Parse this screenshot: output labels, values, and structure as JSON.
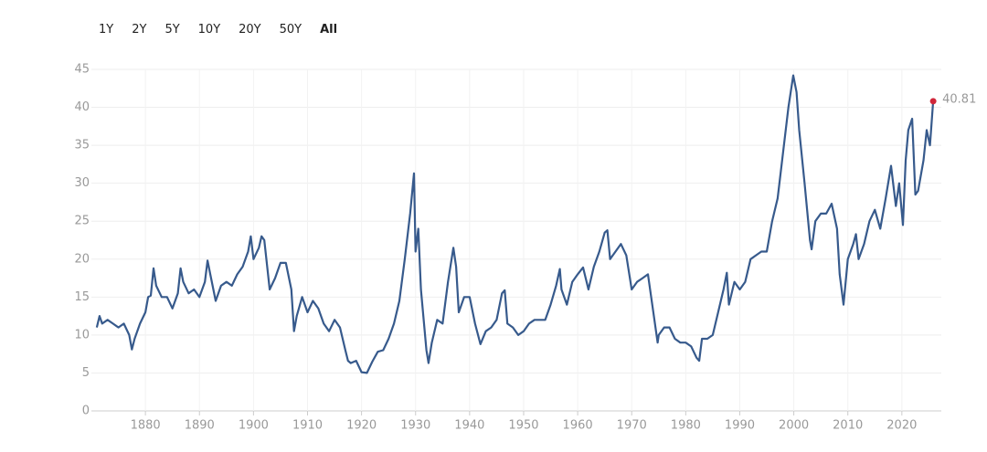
{
  "range_buttons": [
    "1Y",
    "2Y",
    "5Y",
    "10Y",
    "20Y",
    "50Y",
    "All"
  ],
  "selected": "All",
  "chart_data": {
    "type": "line",
    "xlim": [
      1870,
      2027.3
    ],
    "ylim": [
      0,
      45
    ],
    "xticks": [
      1880,
      1890,
      1900,
      1910,
      1920,
      1930,
      1940,
      1950,
      1960,
      1970,
      1980,
      1990,
      2000,
      2010,
      2020
    ],
    "yticks": [
      0,
      5,
      10,
      15,
      20,
      25,
      30,
      35,
      40,
      45
    ],
    "grid": true,
    "x": [
      1871,
      1871.5,
      1872,
      1873,
      1874,
      1875,
      1876,
      1877,
      1877.5,
      1878,
      1879,
      1880,
      1880.5,
      1881,
      1881.5,
      1882,
      1883,
      1884,
      1885,
      1886,
      1886.5,
      1887,
      1888,
      1889,
      1890,
      1891,
      1891.5,
      1892,
      1893,
      1894,
      1895,
      1896,
      1897,
      1898,
      1899,
      1899.5,
      1900,
      1901,
      1901.5,
      1902,
      1903,
      1904,
      1905,
      1906,
      1907,
      1907.5,
      1908,
      1909,
      1910,
      1911,
      1912,
      1913,
      1914,
      1915,
      1916,
      1917,
      1917.5,
      1918,
      1919,
      1920,
      1921,
      1922,
      1923,
      1924,
      1925,
      1926,
      1927,
      1928,
      1929,
      1929.7,
      1930,
      1930.5,
      1931,
      1932,
      1932.4,
      1933,
      1934,
      1935,
      1936,
      1937,
      1937.5,
      1938,
      1939,
      1940,
      1941,
      1942,
      1943,
      1944,
      1945,
      1946,
      1946.5,
      1947,
      1948,
      1949,
      1950,
      1951,
      1952,
      1953,
      1954,
      1955,
      1956,
      1956.7,
      1957,
      1958,
      1959,
      1960,
      1961,
      1962,
      1963,
      1964,
      1965,
      1965.5,
      1966,
      1967,
      1968,
      1969,
      1970,
      1971,
      1972,
      1973,
      1974,
      1974.8,
      1975,
      1976,
      1977,
      1978,
      1979,
      1980,
      1981,
      1982,
      1982.5,
      1983,
      1984,
      1985,
      1986,
      1987,
      1987.6,
      1988,
      1989,
      1990,
      1991,
      1992,
      1993,
      1994,
      1995,
      1996,
      1997,
      1998,
      1999,
      1999.9,
      2000.5,
      2001,
      2002,
      2003,
      2003.3,
      2004,
      2005,
      2006,
      2007,
      2008,
      2008.5,
      2009.2,
      2010,
      2011,
      2011.5,
      2012,
      2013,
      2014,
      2015,
      2016,
      2017,
      2018,
      2018.9,
      2019.5,
      2020.2,
      2020.7,
      2021.2,
      2021.9,
      2022.5,
      2023,
      2024,
      2024.6,
      2025.2,
      2025.8
    ],
    "series": [
      {
        "color": "#375a8c",
        "end_color": "#d0263a",
        "values": [
          11,
          12.5,
          11.5,
          12,
          11.5,
          11,
          11.5,
          10,
          8.1,
          9.5,
          11.5,
          13,
          15,
          15.2,
          18.8,
          16.5,
          15,
          15,
          13.5,
          15.5,
          18.8,
          17,
          15.5,
          16,
          15,
          17,
          19.8,
          18,
          14.5,
          16.5,
          17,
          16.5,
          18,
          19,
          21,
          23,
          20,
          21.5,
          23,
          22.5,
          16,
          17.5,
          19.5,
          19.5,
          16,
          10.5,
          12.5,
          15,
          13,
          14.5,
          13.5,
          11.5,
          10.5,
          12,
          11,
          8,
          6.6,
          6.3,
          6.6,
          5.1,
          5.0,
          6.5,
          7.8,
          8.0,
          9.5,
          11.5,
          14.5,
          20,
          26,
          31.3,
          21,
          24,
          16,
          8,
          6.3,
          9,
          12,
          11.5,
          17,
          21.5,
          19,
          13,
          15,
          15,
          11.5,
          8.8,
          10.5,
          11,
          12,
          15.5,
          15.9,
          11.5,
          11,
          10,
          10.5,
          11.5,
          12,
          12,
          12,
          14,
          16.5,
          18.7,
          16,
          14,
          17,
          18,
          18.9,
          16,
          19,
          21,
          23.5,
          23.8,
          20,
          21,
          22,
          20.5,
          16,
          17,
          17.5,
          18,
          13,
          9,
          10,
          11,
          11,
          9.5,
          9,
          9,
          8.5,
          7,
          6.6,
          9.5,
          9.5,
          10,
          13,
          16,
          18.2,
          14,
          17,
          16,
          17,
          20,
          20.5,
          21,
          21,
          25,
          28,
          34,
          40,
          44.2,
          42,
          37,
          30,
          22.5,
          21.3,
          25,
          26,
          26,
          27.3,
          24,
          18,
          14,
          20,
          22,
          23.3,
          20,
          22,
          25,
          26.5,
          24,
          28,
          32.3,
          27,
          30,
          24.5,
          33,
          37,
          38.5,
          28.5,
          29,
          33,
          37,
          35,
          40.81
        ]
      }
    ]
  }
}
